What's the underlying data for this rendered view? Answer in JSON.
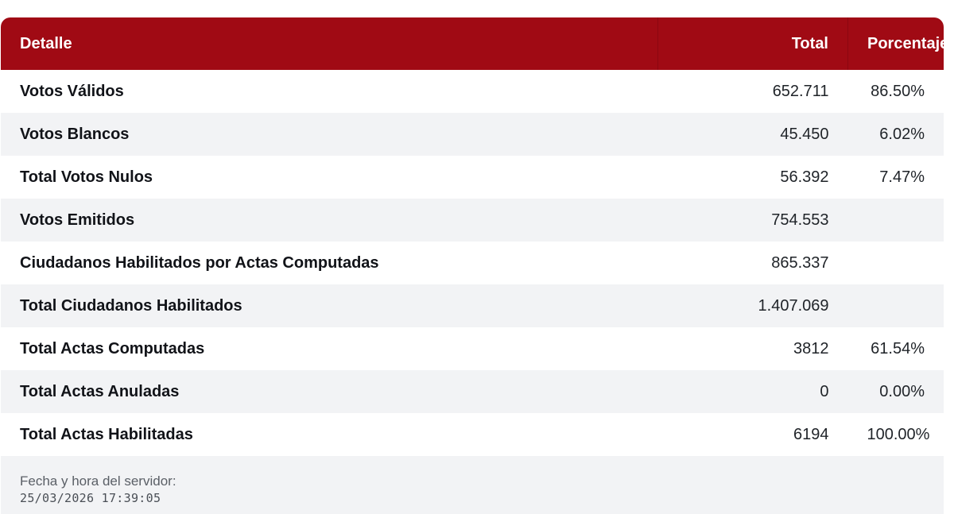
{
  "table": {
    "headers": {
      "detail": "Detalle",
      "total": "Total",
      "percentage": "Porcentaje"
    },
    "rows": [
      {
        "detail": "Votos Válidos",
        "total": "652.711",
        "percentage": "86.50%"
      },
      {
        "detail": "Votos Blancos",
        "total": "45.450",
        "percentage": "6.02%"
      },
      {
        "detail": "Total Votos Nulos",
        "total": "56.392",
        "percentage": "7.47%"
      },
      {
        "detail": "Votos Emitidos",
        "total": "754.553",
        "percentage": ""
      },
      {
        "detail": "Ciudadanos Habilitados por Actas Computadas",
        "total": "865.337",
        "percentage": ""
      },
      {
        "detail": "Total Ciudadanos Habilitados",
        "total": "1.407.069",
        "percentage": ""
      },
      {
        "detail": "Total Actas Computadas",
        "total": "3812",
        "percentage": "61.54%"
      },
      {
        "detail": "Total Actas Anuladas",
        "total": "0",
        "percentage": "0.00%"
      },
      {
        "detail": "Total Actas Habilitadas",
        "total": "6194",
        "percentage": "100.00%"
      }
    ]
  },
  "footer": {
    "label": "Fecha y hora del servidor:",
    "timestamp": "25/03/2026 17:39:05"
  },
  "colors": {
    "header_bg": "#a00a14",
    "row_alt": "#f2f3f5"
  }
}
